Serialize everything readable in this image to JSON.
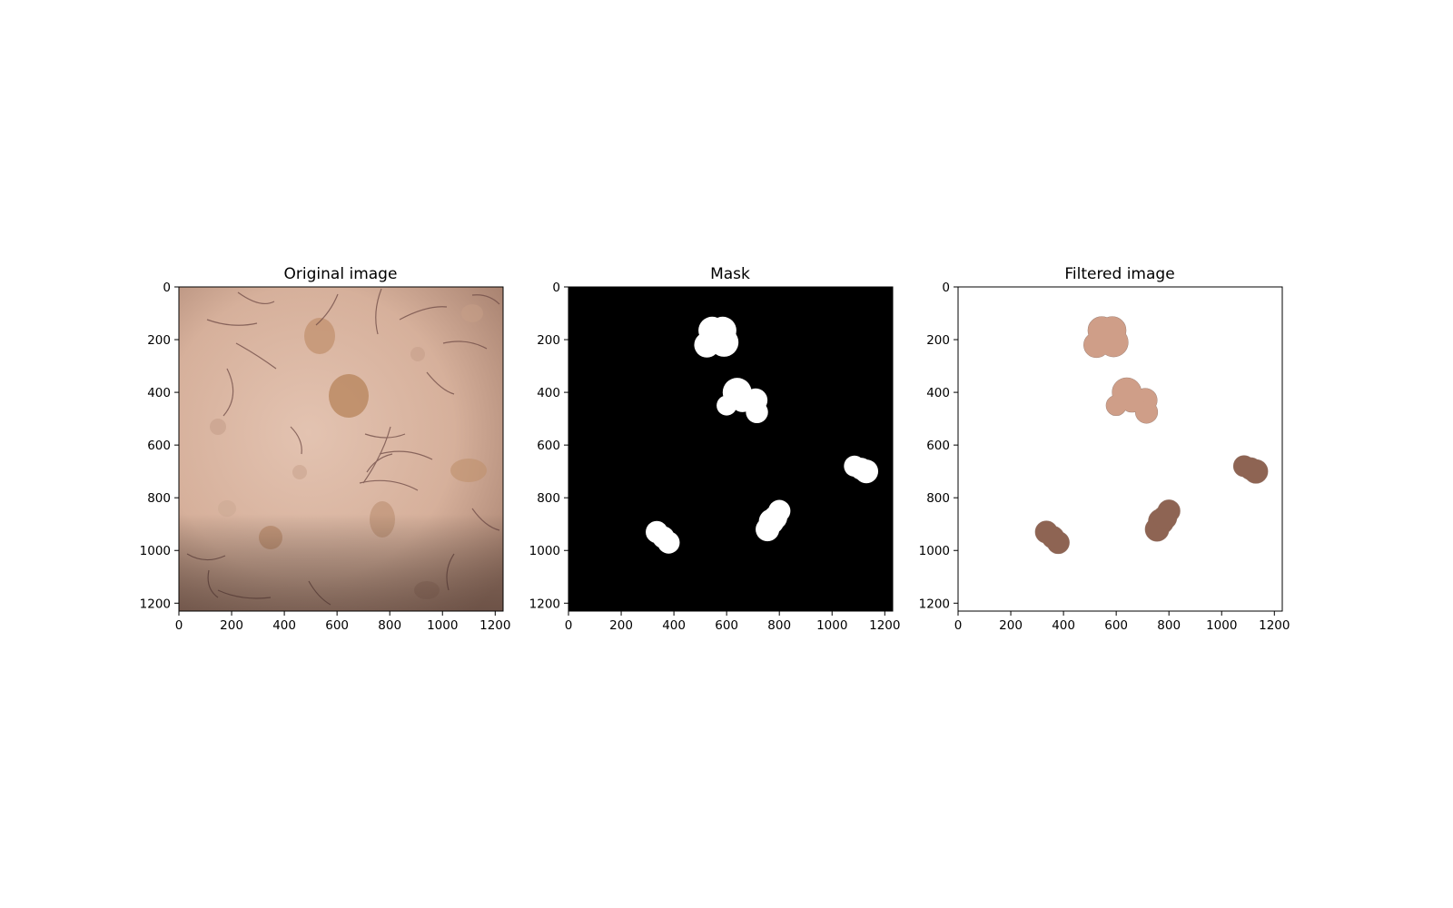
{
  "panels": [
    {
      "title": "Original image",
      "kind": "original"
    },
    {
      "title": "Mask",
      "kind": "mask"
    },
    {
      "title": "Filtered image",
      "kind": "filtered"
    }
  ],
  "axes": {
    "extent": [
      0,
      1230
    ],
    "xticks": [
      "0",
      "200",
      "400",
      "600",
      "800",
      "1000",
      "1200"
    ],
    "yticks": [
      "0",
      "200",
      "400",
      "600",
      "800",
      "1000",
      "1200"
    ],
    "tick_values": [
      0,
      200,
      400,
      600,
      800,
      1000,
      1200
    ]
  },
  "lesions": [
    {
      "cx": 560,
      "cy": 190,
      "shade": "light"
    },
    {
      "cx": 650,
      "cy": 420,
      "shade": "light"
    },
    {
      "cx": 1110,
      "cy": 690,
      "shade": "dark"
    },
    {
      "cx": 780,
      "cy": 880,
      "shade": "dark"
    },
    {
      "cx": 360,
      "cy": 950,
      "shade": "dark"
    }
  ],
  "colors": {
    "skin": "#d7b4a0",
    "mask_bg": "#000000",
    "mask_fg": "#ffffff",
    "lesion_light": "#cf9e88",
    "lesion_dark": "#8e6453"
  }
}
